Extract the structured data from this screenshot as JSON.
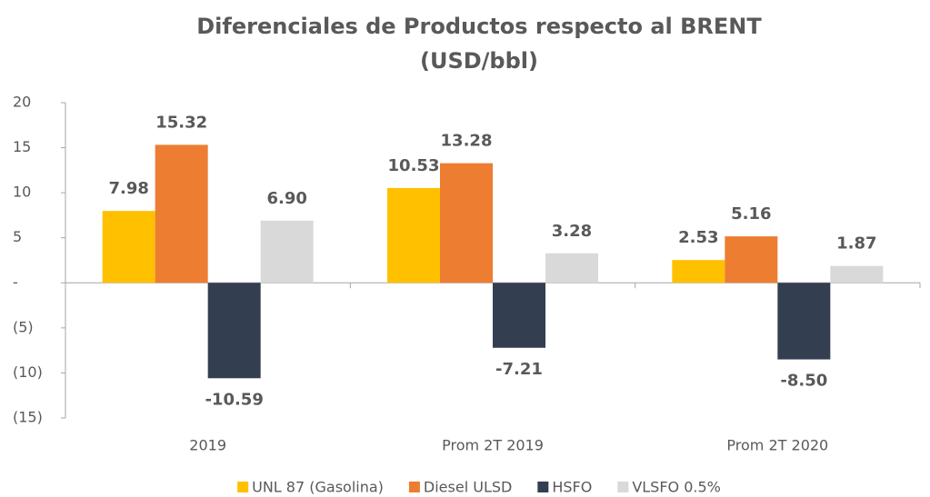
{
  "chart_data": {
    "type": "bar",
    "title": "Diferenciales de Productos respecto al BRENT",
    "subtitle": "(USD/bbl)",
    "categories": [
      "2019",
      "Prom 2T 2019",
      "Prom 2T 2020"
    ],
    "series": [
      {
        "name": "UNL 87 (Gasolina)",
        "color": "#ffc000",
        "values": [
          7.98,
          10.53,
          2.53
        ],
        "value_labels": [
          "7.98",
          "10.53",
          "2.53"
        ]
      },
      {
        "name": "Diesel ULSD",
        "color": "#ed7d31",
        "values": [
          15.32,
          13.28,
          5.16
        ],
        "value_labels": [
          "15.32",
          "13.28",
          "5.16"
        ]
      },
      {
        "name": "HSFO",
        "color": "#333f50",
        "values": [
          -10.59,
          -7.21,
          -8.5
        ],
        "value_labels": [
          "-10.59",
          "-7.21",
          "-8.50"
        ]
      },
      {
        "name": "VLSFO 0.5%",
        "color": "#d9d9d9",
        "values": [
          6.9,
          3.28,
          1.87
        ],
        "value_labels": [
          "6.90",
          "3.28",
          "1.87"
        ]
      }
    ],
    "ylim": [
      -15,
      20
    ],
    "yticks": [
      20,
      15,
      10,
      5,
      {
        "value": 0,
        "label": "-"
      },
      {
        "value": -5,
        "label": "(5)"
      },
      {
        "value": -10,
        "label": "(10)"
      },
      {
        "value": -15,
        "label": "(15)"
      }
    ],
    "legend": "bottom"
  }
}
